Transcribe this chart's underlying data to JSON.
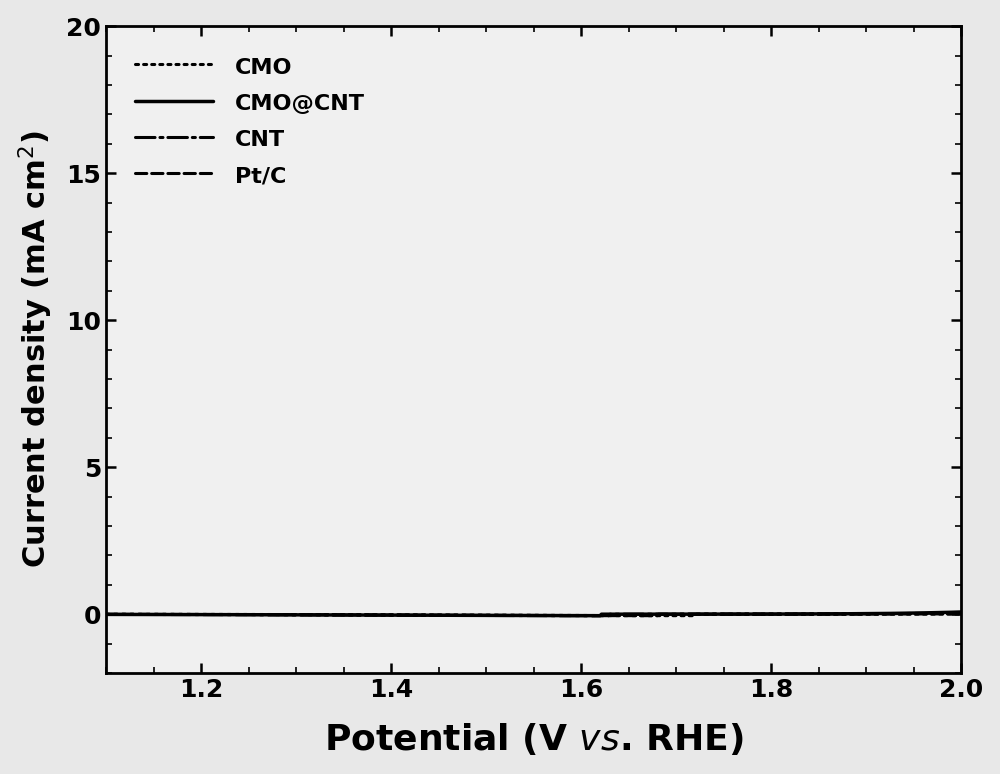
{
  "title": "",
  "xlabel_normal": "Potential (V ",
  "xlabel_italic": "vs",
  "xlabel_end": ". RHE)",
  "ylabel_line1": "Current density (mA cm",
  "ylabel_sup": "2",
  "ylabel_end": ")",
  "xlim": [
    1.1,
    2.0
  ],
  "ylim": [
    -2,
    20
  ],
  "yticks": [
    0,
    5,
    10,
    15,
    20
  ],
  "xticks": [
    1.2,
    1.4,
    1.6,
    1.8,
    2.0
  ],
  "background_color": "#e8e8e8",
  "plot_bg_color": "#f0f0f0",
  "series": [
    {
      "label": "CMO",
      "style": "dotted",
      "color": "#000000",
      "linewidth": 2.2,
      "onset": 1.72,
      "A": 0.00012,
      "alpha": 14.5
    },
    {
      "label": "CMO@CNT",
      "style": "solid",
      "color": "#000000",
      "linewidth": 2.5,
      "onset": 1.62,
      "A": 0.00045,
      "alpha": 13.5
    },
    {
      "label": "CNT",
      "style": "dashdot",
      "color": "#000000",
      "linewidth": 2.2,
      "onset": 1.63,
      "A": 0.00035,
      "alpha": 13.5
    },
    {
      "label": "Pt/C",
      "style": "dashed",
      "color": "#000000",
      "linewidth": 2.2,
      "onset": 1.68,
      "A": 0.00018,
      "alpha": 13.5
    }
  ],
  "legend_loc": "upper left",
  "legend_fontsize": 16,
  "tick_fontsize": 18,
  "xlabel_fontsize": 26,
  "ylabel_fontsize": 22,
  "spine_linewidth": 2.0
}
